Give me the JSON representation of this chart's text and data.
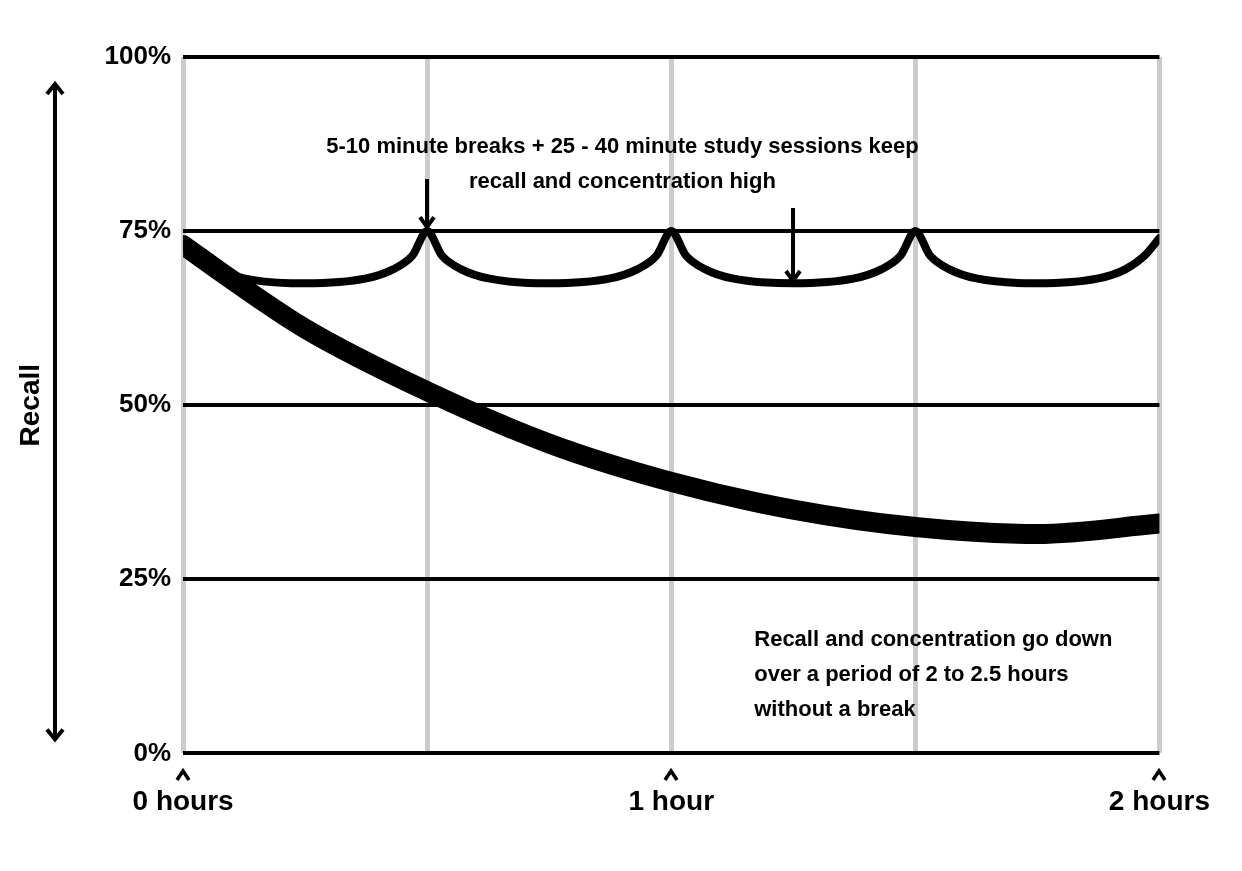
{
  "chart_data": {
    "type": "line",
    "ylabel": "Recall",
    "series": [
      {
        "color": "#000000",
        "x": [
          0,
          0.03,
          0.07,
          0.125,
          0.25,
          0.375,
          0.43,
          0.47,
          0.5,
          0.53,
          0.57,
          0.625,
          0.75,
          0.875,
          0.93,
          0.97,
          1,
          1.03,
          1.07,
          1.125,
          1.25,
          1.375,
          1.43,
          1.47,
          1.5,
          1.53,
          1.57,
          1.625,
          1.75,
          1.875,
          1.93,
          1.97,
          2
        ],
        "values": [
          73,
          71,
          69.5,
          68.2,
          67.5,
          68.2,
          69.5,
          71.5,
          75,
          71.5,
          69.5,
          68.2,
          67.5,
          68.2,
          69.5,
          71.5,
          75,
          71.5,
          69.5,
          68.2,
          67.5,
          68.2,
          69.5,
          71.5,
          75,
          71.5,
          69.5,
          68.2,
          67.5,
          68.2,
          69.5,
          71.5,
          74
        ]
      },
      {
        "color": "#000000",
        "x": [
          0,
          0.1,
          0.25,
          0.5,
          0.75,
          1,
          1.25,
          1.5,
          1.75,
          2
        ],
        "values": [
          73,
          68,
          61,
          52,
          44.5,
          39,
          35,
          32.5,
          31.5,
          33
        ]
      }
    ],
    "xlim": [
      0,
      2
    ],
    "xticks": [
      {
        "value": 0,
        "label": "0 hours"
      },
      {
        "value": 0.5,
        "label": null
      },
      {
        "value": 1,
        "label": "1 hour"
      },
      {
        "value": 1.5,
        "label": null
      },
      {
        "value": 2,
        "label": "2 hours"
      }
    ],
    "ylim": [
      0,
      100
    ],
    "yticks": [
      {
        "value": 0,
        "label": "0%"
      },
      {
        "value": 25,
        "label": "25%"
      },
      {
        "value": 50,
        "label": "50%"
      },
      {
        "value": 75,
        "label": "75%"
      },
      {
        "value": 100,
        "label": "100%"
      }
    ],
    "grid": true,
    "legend": false,
    "marker": "none",
    "line_style": "solid",
    "annotations": [
      {
        "text": "5-10 minute breaks + 25 - 40 minute study sessions keep recall and concentration high",
        "x": 0.5,
        "y": 75
      },
      "Recall and concentration go down over a period of 2 to 2.5 hours without a break"
    ]
  }
}
